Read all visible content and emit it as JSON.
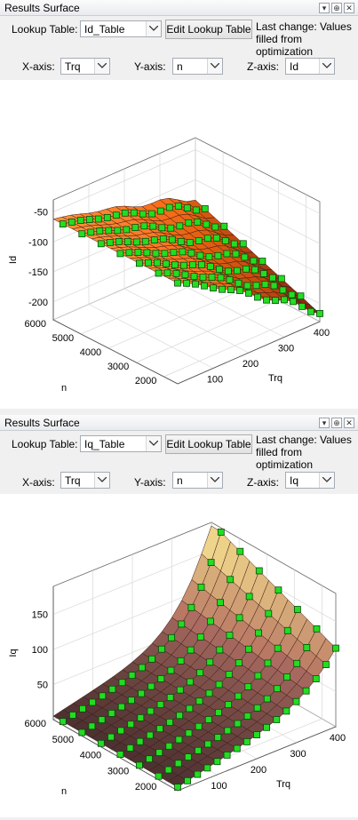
{
  "panels": [
    {
      "title": "Results Surface",
      "lookup_label": "Lookup Table:",
      "lookup_value": "Id_Table",
      "edit_button": "Edit Lookup Table",
      "last_change_line1": "Last change: Values",
      "last_change_line2": "filled from optimization",
      "x_label": "X-axis:",
      "x_value": "Trq",
      "y_label": "Y-axis:",
      "y_value": "n",
      "z_label": "Z-axis:",
      "z_value": "Id"
    },
    {
      "title": "Results Surface",
      "lookup_label": "Lookup Table:",
      "lookup_value": "Iq_Table",
      "edit_button": "Edit Lookup Table",
      "last_change_line1": "Last change: Values",
      "last_change_line2": "filled from optimization",
      "x_label": "X-axis:",
      "x_value": "Trq",
      "y_label": "Y-axis:",
      "y_value": "n",
      "z_label": "Z-axis:",
      "z_value": "Iq"
    }
  ],
  "chart_data": [
    {
      "type": "surface3d",
      "xlabel": "Trq",
      "ylabel": "n",
      "zlabel": "Id",
      "x_ticks": [
        "100",
        "200",
        "300",
        "400"
      ],
      "y_ticks": [
        "2000",
        "3000",
        "4000",
        "5000",
        "6000"
      ],
      "z_ticks": [
        "-50",
        "-100",
        "-150",
        "-200"
      ],
      "xlim": [
        0,
        400
      ],
      "ylim": [
        1500,
        6000
      ],
      "zlim": [
        -230,
        -30
      ],
      "colormap": "hot",
      "marker_color": "#22dd22",
      "description_values": "Id near -65 at Trq=0 for all speeds; decreases with Trq to about -220 at Trq=400, n=2000; flatter at high n"
    },
    {
      "type": "surface3d",
      "xlabel": "Trq",
      "ylabel": "n",
      "zlabel": "Iq",
      "x_ticks": [
        "100",
        "200",
        "300",
        "400"
      ],
      "y_ticks": [
        "2000",
        "3000",
        "4000",
        "5000",
        "6000"
      ],
      "z_ticks": [
        "50",
        "100",
        "150"
      ],
      "xlim": [
        0,
        400
      ],
      "ylim": [
        1500,
        6000
      ],
      "zlim": [
        0,
        190
      ],
      "colormap": "pink",
      "marker_color": "#22dd22",
      "description_values": "Iq near 0 at Trq=0; rises with Trq; steep rise to about 180 at Trq=400 at high n"
    }
  ]
}
